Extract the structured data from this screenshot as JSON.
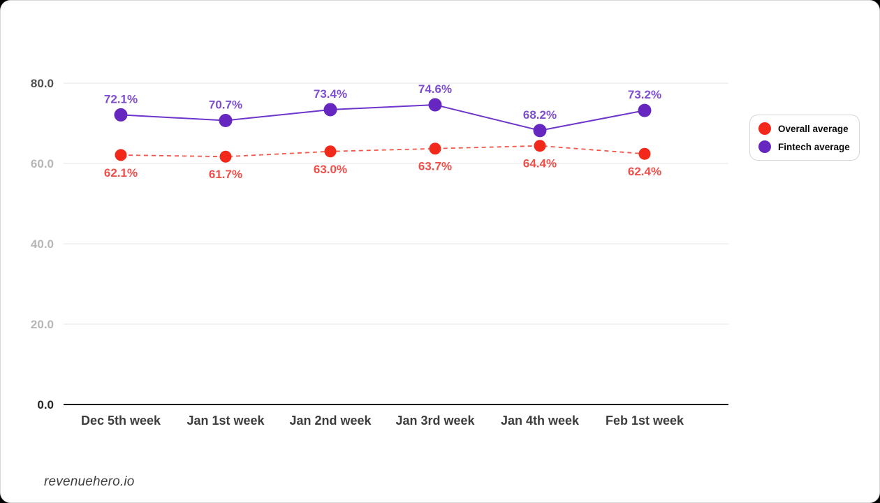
{
  "page": {
    "footer": "revenuehero.io"
  },
  "legend": {
    "position": "right",
    "items": [
      {
        "label": "Overall average",
        "color": "#f2291a"
      },
      {
        "label": "Fintech average",
        "color": "#6527c0"
      }
    ]
  },
  "chart_data": {
    "type": "line",
    "title": "",
    "xlabel": "",
    "ylabel": "",
    "categories": [
      "Dec 5th week",
      "Jan 1st week",
      "Jan 2nd week",
      "Jan 3rd week",
      "Jan 4th week",
      "Feb 1st week"
    ],
    "series": [
      {
        "name": "Overall average",
        "values": [
          62.1,
          61.7,
          63.0,
          63.7,
          64.4,
          62.4
        ],
        "unit": "%",
        "line_style": "dashed",
        "dot_color": "#f2291a",
        "line_color": "#f4564a",
        "label_color": "#f0504a",
        "label_position": "below"
      },
      {
        "name": "Fintech average",
        "values": [
          72.1,
          70.7,
          73.4,
          74.6,
          68.2,
          73.2
        ],
        "unit": "%",
        "line_style": "solid",
        "dot_color": "#6527c0",
        "line_color": "#6d35cc",
        "label_color": "#7d4fd0",
        "label_position": "above"
      }
    ],
    "ylim": [
      0,
      80
    ],
    "yticks": [
      0,
      20,
      40,
      60,
      80
    ],
    "ytick_labels": [
      "0.0",
      "20.0",
      "40.0",
      "60.0",
      "80.0"
    ],
    "grid": true,
    "legend_position": "right",
    "colors": {
      "gridline": "#e4e4e4",
      "baseline": "#111111",
      "xtick_label": "#3d3d3d",
      "ytick_dark_top": "#4f4f4f",
      "ytick_dark_bottom": "#242424",
      "ytick_light": "#b6b6b6"
    }
  }
}
